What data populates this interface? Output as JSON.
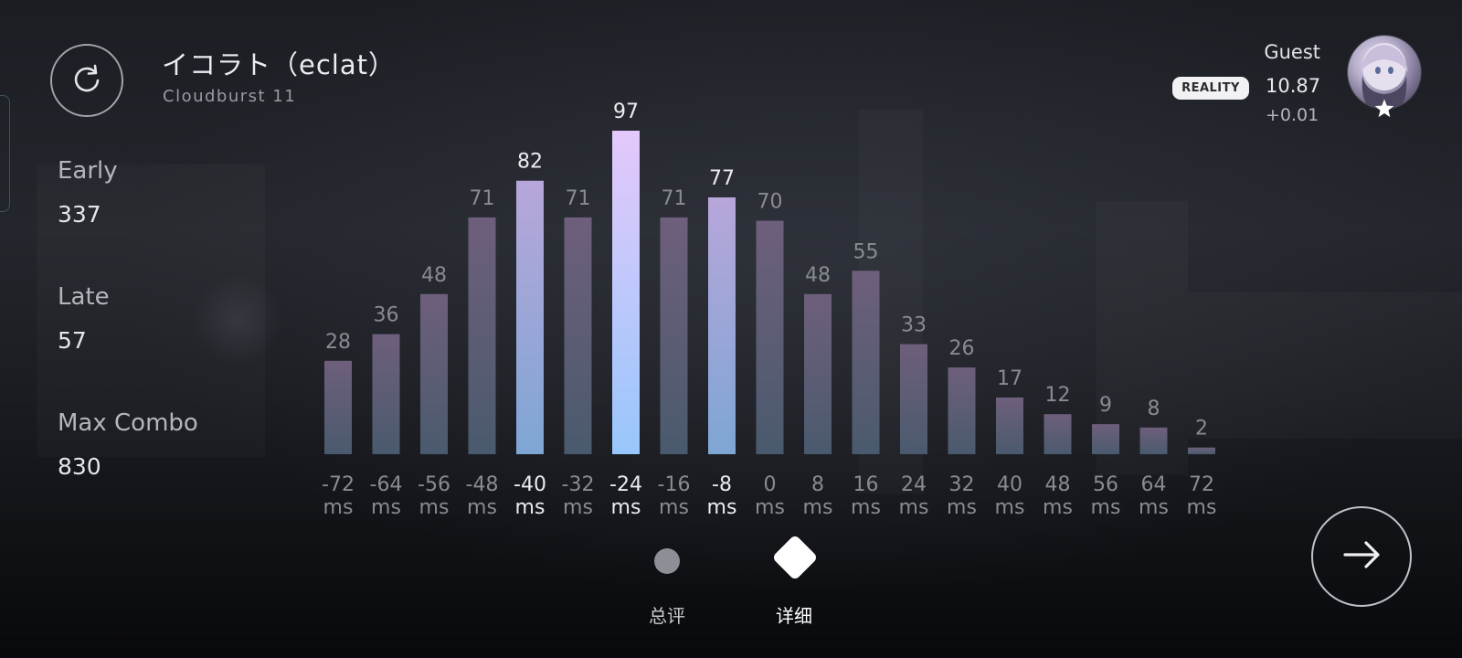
{
  "song": {
    "title": "イコラト（eclat）",
    "difficulty": "Cloudburst 11"
  },
  "stats": {
    "early_label": "Early",
    "early_value": "337",
    "late_label": "Late",
    "late_value": "57",
    "max_combo_label": "Max Combo",
    "max_combo_value": "830"
  },
  "player": {
    "name": "Guest",
    "badge": "REALITY",
    "rating": "10.87",
    "delta": "+0.01"
  },
  "pages": {
    "summary_label": "总评",
    "detail_label": "详细",
    "active": "detail"
  },
  "icons": {
    "retry": "retry-icon",
    "next": "arrow-right-icon",
    "avatar_star": "star-icon"
  },
  "colors": {
    "bar_top": "#6e5f7c",
    "bar_bottom": "#4a5a6e",
    "bar_hi_top": "#b7a6da",
    "bar_hi_bottom": "#7ea6d4",
    "bar_max_top": "#e4c8fb",
    "bar_max_bottom": "#98c7fb",
    "label_dim": "#8a8b92",
    "label_bright": "#ececf0"
  },
  "chart_data": {
    "type": "bar",
    "categories": [
      "-72",
      "-64",
      "-56",
      "-48",
      "-40",
      "-32",
      "-24",
      "-16",
      "-8",
      "0",
      "8",
      "16",
      "24",
      "32",
      "40",
      "48",
      "56",
      "64",
      "72"
    ],
    "unit": "ms",
    "values": [
      28,
      36,
      48,
      71,
      82,
      71,
      97,
      71,
      77,
      70,
      48,
      55,
      33,
      26,
      17,
      12,
      9,
      8,
      2
    ],
    "highlighted": [
      "-40",
      "-24",
      "-8"
    ],
    "peak": "-24",
    "ylim": [
      0,
      97
    ],
    "grid": false,
    "legend": "none"
  }
}
